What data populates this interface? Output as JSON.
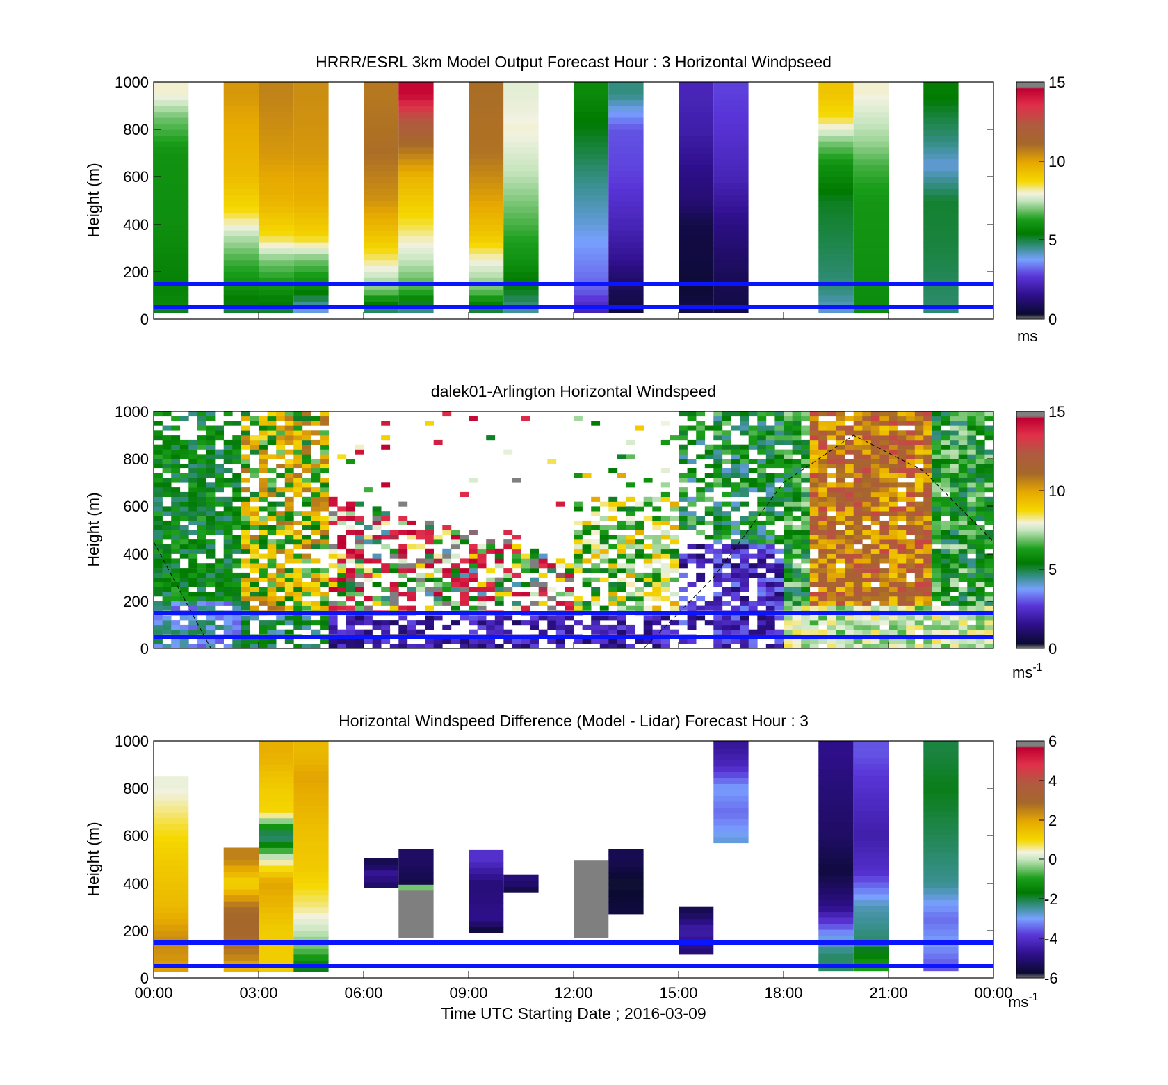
{
  "chart_data": [
    {
      "type": "heatmap",
      "title": "HRRR/ESRL 3km Model Output   Forecast Hour : 3 Horizontal Windpseed",
      "ylabel": "Height (m)",
      "xlabel": "",
      "ylim": [
        0,
        1000
      ],
      "xlim_hours": [
        0,
        24
      ],
      "yticks": [
        "0",
        "200",
        "400",
        "600",
        "800",
        "1000"
      ],
      "xticks": [],
      "colorbar": {
        "ticks": [
          "0",
          "5",
          "10",
          "15"
        ],
        "min": 0,
        "max": 15,
        "unit": "ms",
        "unit_sup": ""
      },
      "ref_lines_m": [
        50,
        150
      ],
      "columns": [
        {
          "h": 0.5,
          "profile": [
            [
              25,
              4.6
            ],
            [
              50,
              5.8
            ],
            [
              150,
              5.6
            ],
            [
              400,
              5.9
            ],
            [
              700,
              6.0
            ],
            [
              850,
              6.9
            ],
            [
              950,
              8.0
            ]
          ]
        },
        {
          "h": 2.5,
          "profile": [
            [
              25,
              5.0
            ],
            [
              120,
              5.8
            ],
            [
              250,
              6.6
            ],
            [
              350,
              7.4
            ],
            [
              450,
              8.6
            ],
            [
              600,
              9.4
            ],
            [
              800,
              9.8
            ],
            [
              950,
              10.2
            ]
          ]
        },
        {
          "h": 3.5,
          "profile": [
            [
              25,
              5.0
            ],
            [
              120,
              5.9
            ],
            [
              250,
              7.0
            ],
            [
              350,
              8.6
            ],
            [
              500,
              9.6
            ],
            [
              700,
              10.2
            ],
            [
              950,
              10.6
            ]
          ]
        },
        {
          "h": 4.5,
          "profile": [
            [
              25,
              3.7
            ],
            [
              120,
              5.6
            ],
            [
              250,
              6.9
            ],
            [
              350,
              8.8
            ],
            [
              500,
              9.7
            ],
            [
              700,
              10.2
            ],
            [
              950,
              10.4
            ]
          ]
        },
        {
          "h": 6.5,
          "profile": [
            [
              25,
              4.5
            ],
            [
              120,
              6.9
            ],
            [
              250,
              8.3
            ],
            [
              350,
              9.2
            ],
            [
              500,
              10.3
            ],
            [
              700,
              11.0
            ],
            [
              950,
              10.8
            ]
          ]
        },
        {
          "h": 7.5,
          "profile": [
            [
              25,
              4.3
            ],
            [
              120,
              6.5
            ],
            [
              250,
              7.5
            ],
            [
              400,
              8.5
            ],
            [
              600,
              9.6
            ],
            [
              750,
              11.2
            ],
            [
              850,
              12.6
            ],
            [
              950,
              14.4
            ]
          ]
        },
        {
          "h": 9.5,
          "profile": [
            [
              25,
              4.8
            ],
            [
              120,
              6.8
            ],
            [
              250,
              8.0
            ],
            [
              350,
              9.1
            ],
            [
              500,
              10.0
            ],
            [
              700,
              10.9
            ],
            [
              950,
              11.0
            ]
          ]
        },
        {
          "h": 10.5,
          "profile": [
            [
              25,
              4.3
            ],
            [
              120,
              5.2
            ],
            [
              250,
              6.0
            ],
            [
              400,
              6.6
            ],
            [
              600,
              7.4
            ],
            [
              800,
              8.0
            ],
            [
              950,
              7.8
            ]
          ]
        },
        {
          "h": 12.5,
          "profile": [
            [
              25,
              2.0
            ],
            [
              120,
              3.1
            ],
            [
              250,
              3.5
            ],
            [
              400,
              4.0
            ],
            [
              600,
              4.6
            ],
            [
              800,
              5.3
            ],
            [
              950,
              5.8
            ]
          ]
        },
        {
          "h": 13.5,
          "profile": [
            [
              25,
              0.5
            ],
            [
              120,
              0.8
            ],
            [
              250,
              1.6
            ],
            [
              400,
              2.2
            ],
            [
              600,
              2.8
            ],
            [
              800,
              3.0
            ],
            [
              950,
              4.6
            ]
          ]
        },
        {
          "h": 15.5,
          "profile": [
            [
              25,
              0.7
            ],
            [
              120,
              0.4
            ],
            [
              250,
              0.5
            ],
            [
              400,
              0.6
            ],
            [
              500,
              1.2
            ],
            [
              600,
              1.4
            ],
            [
              800,
              2.0
            ],
            [
              950,
              2.2
            ]
          ]
        },
        {
          "h": 16.5,
          "profile": [
            [
              25,
              0.6
            ],
            [
              120,
              0.7
            ],
            [
              250,
              1.0
            ],
            [
              400,
              1.4
            ],
            [
              600,
              2.2
            ],
            [
              800,
              2.6
            ],
            [
              950,
              2.8
            ]
          ]
        },
        {
          "h": 19.5,
          "profile": [
            [
              25,
              4.0
            ],
            [
              120,
              4.6
            ],
            [
              300,
              4.9
            ],
            [
              500,
              5.2
            ],
            [
              650,
              6.0
            ],
            [
              750,
              7.0
            ],
            [
              850,
              8.6
            ],
            [
              950,
              9.2
            ]
          ]
        },
        {
          "h": 20.5,
          "profile": [
            [
              25,
              5.8
            ],
            [
              120,
              5.9
            ],
            [
              300,
              6.0
            ],
            [
              500,
              6.1
            ],
            [
              650,
              6.6
            ],
            [
              750,
              7.2
            ],
            [
              850,
              7.6
            ],
            [
              950,
              8.0
            ]
          ]
        },
        {
          "h": 22.5,
          "profile": [
            [
              25,
              4.7
            ],
            [
              120,
              4.8
            ],
            [
              300,
              5.0
            ],
            [
              500,
              5.1
            ],
            [
              650,
              4.0
            ],
            [
              750,
              4.6
            ],
            [
              850,
              5.0
            ],
            [
              950,
              5.5
            ]
          ]
        }
      ]
    },
    {
      "type": "heatmap",
      "title": "dalek01-Arlington  Horizontal Windspeed",
      "ylabel": "Height (m)",
      "xlabel": "",
      "ylim": [
        0,
        1000
      ],
      "xlim_hours": [
        0,
        24
      ],
      "yticks": [
        "0",
        "200",
        "400",
        "600",
        "800",
        "1000"
      ],
      "xticks": [],
      "colorbar": {
        "ticks": [
          "0",
          "5",
          "10",
          "15"
        ],
        "min": 0,
        "max": 15,
        "unit": "ms",
        "unit_sup": "-1"
      },
      "ref_lines_m": [
        50,
        150
      ],
      "dashed_curve": [
        [
          0,
          450
        ],
        [
          2,
          -100
        ],
        [
          14,
          0
        ],
        [
          16,
          300
        ],
        [
          18,
          700
        ],
        [
          20,
          900
        ],
        [
          22,
          750
        ],
        [
          24,
          450
        ]
      ]
    },
    {
      "type": "heatmap",
      "title": "Horizontal Windspeed Difference (Model - Lidar) Forecast Hour : 3",
      "ylabel": "Height (m)",
      "xlabel": "Time UTC  Starting Date ; 2016-03-09",
      "ylim": [
        0,
        1000
      ],
      "xlim_hours": [
        0,
        24
      ],
      "yticks": [
        "0",
        "200",
        "400",
        "600",
        "800",
        "1000"
      ],
      "xticks": [
        "00:00",
        "03:00",
        "06:00",
        "09:00",
        "12:00",
        "15:00",
        "18:00",
        "21:00",
        "00:00"
      ],
      "colorbar": {
        "ticks": [
          "-6",
          "-4",
          "-2",
          "0",
          "2",
          "4",
          "6"
        ],
        "min": -6,
        "max": 6,
        "unit": "ms",
        "unit_sup": "-1"
      },
      "ref_lines_m": [
        50,
        150
      ],
      "columns": [
        {
          "h": 0.5,
          "profile": [
            [
              25,
              2.0
            ],
            [
              150,
              2.4
            ],
            [
              300,
              1.6
            ],
            [
              500,
              1.2
            ],
            [
              650,
              0.8
            ],
            [
              800,
              0.3
            ]
          ],
          "top": 830
        },
        {
          "h": 2.5,
          "profile": [
            [
              25,
              1.5
            ],
            [
              100,
              2.6
            ],
            [
              200,
              3.0
            ],
            [
              300,
              2.8
            ],
            [
              400,
              1.0
            ],
            [
              500,
              2.5
            ]
          ],
          "top": 530
        },
        {
          "h": 3.5,
          "profile": [
            [
              25,
              1.2
            ],
            [
              200,
              1.2
            ],
            [
              400,
              2.0
            ],
            [
              500,
              0.3
            ],
            [
              600,
              -2.5
            ],
            [
              700,
              1.0
            ],
            [
              800,
              1.2
            ],
            [
              950,
              1.8
            ]
          ],
          "top": 1000
        },
        {
          "h": 4.5,
          "profile": [
            [
              25,
              -2.0
            ],
            [
              120,
              -0.6
            ],
            [
              200,
              0.0
            ],
            [
              300,
              0.6
            ],
            [
              450,
              1.2
            ],
            [
              650,
              1.5
            ],
            [
              850,
              2.0
            ],
            [
              950,
              1.6
            ]
          ],
          "top": 1000
        },
        {
          "h": 6.5,
          "profile": [
            [
              390,
              -5.2
            ],
            [
              440,
              -4.6
            ],
            [
              480,
              -5.4
            ]
          ],
          "top": 500,
          "bottom": 380
        },
        {
          "h": 7.5,
          "profile": [
            [
              200,
              6.0
            ],
            [
              360,
              6.0
            ],
            [
              400,
              -5.5
            ],
            [
              500,
              -5.2
            ]
          ],
          "top": 530,
          "bottom": 170
        },
        {
          "h": 9.5,
          "profile": [
            [
              200,
              -5.6
            ],
            [
              250,
              -4.8
            ],
            [
              400,
              -5.0
            ],
            [
              500,
              -4.0
            ]
          ],
          "top": 530,
          "bottom": 190
        },
        {
          "h": 10.5,
          "profile": [
            [
              370,
              -5.5
            ],
            [
              410,
              -5.0
            ]
          ],
          "top": 420,
          "bottom": 360
        },
        {
          "h": 12.5,
          "profile": [
            [
              190,
              6.0
            ],
            [
              400,
              6.0
            ]
          ],
          "top": 490,
          "bottom": 170
        },
        {
          "h": 13.5,
          "profile": [
            [
              280,
              -5.6
            ],
            [
              400,
              -5.8
            ],
            [
              500,
              -5.4
            ]
          ],
          "top": 530,
          "bottom": 270
        },
        {
          "h": 15.5,
          "profile": [
            [
              120,
              -5.0
            ],
            [
              200,
              -4.4
            ],
            [
              280,
              -5.4
            ]
          ],
          "top": 290,
          "bottom": 100
        },
        {
          "h": 16.5,
          "profile": [
            [
              580,
              -2.8
            ],
            [
              700,
              -3.4
            ],
            [
              800,
              -3.0
            ],
            [
              900,
              -4.2
            ],
            [
              980,
              -4.6
            ]
          ],
          "top": 1000,
          "bottom": 570
        },
        {
          "h": 19.5,
          "profile": [
            [
              100,
              -2.2
            ],
            [
              180,
              -3.0
            ],
            [
              300,
              -4.8
            ],
            [
              450,
              -5.6
            ],
            [
              600,
              -5.2
            ],
            [
              800,
              -5.0
            ],
            [
              950,
              -4.8
            ]
          ],
          "top": 1000,
          "bottom": 30
        },
        {
          "h": 20.5,
          "profile": [
            [
              50,
              -1.0
            ],
            [
              150,
              -2.2
            ],
            [
              300,
              -2.6
            ],
            [
              450,
              -4.0
            ],
            [
              600,
              -4.4
            ],
            [
              800,
              -4.0
            ],
            [
              950,
              -3.6
            ]
          ],
          "top": 1000,
          "bottom": 30
        },
        {
          "h": 22.5,
          "profile": [
            [
              50,
              -3.6
            ],
            [
              150,
              -3.0
            ],
            [
              250,
              -3.4
            ],
            [
              400,
              -2.4
            ],
            [
              800,
              -1.8
            ],
            [
              950,
              -2.0
            ]
          ],
          "top": 1000,
          "bottom": 30
        }
      ]
    }
  ]
}
